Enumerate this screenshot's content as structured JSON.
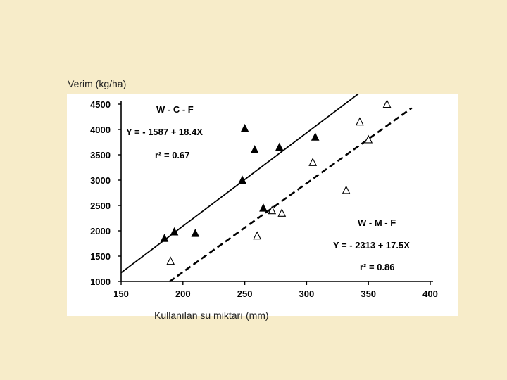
{
  "colors": {
    "background": "#f7ecc9",
    "plot": "#ffffff",
    "ink": "#000000"
  },
  "labels": {
    "ylabel": "Verim (kg/ha)",
    "xlabel": "Kullanılan su miktarı (mm)"
  },
  "chart_data": {
    "type": "scatter",
    "title": "",
    "xlabel": "Kullanılan su miktarı (mm)",
    "ylabel": "Verim (kg/ha)",
    "xlim": [
      150,
      400
    ],
    "ylim": [
      1000,
      4500
    ],
    "xticks": [
      150,
      200,
      250,
      300,
      350,
      400
    ],
    "yticks": [
      1000,
      1500,
      2000,
      2500,
      3000,
      3500,
      4000,
      4500
    ],
    "grid": false,
    "series": [
      {
        "name": "W - C - F",
        "marker": "filled-triangle",
        "line": "solid",
        "equation": "Y = - 1587 + 18.4X",
        "r2": "r² = 0.67",
        "fit": {
          "intercept": -1587,
          "slope": 18.4,
          "x_range": [
            150,
            380
          ]
        },
        "points": [
          [
            185,
            1850
          ],
          [
            193,
            1980
          ],
          [
            210,
            1950
          ],
          [
            250,
            4020
          ],
          [
            258,
            3600
          ],
          [
            278,
            3650
          ],
          [
            248,
            3000
          ],
          [
            265,
            2450
          ],
          [
            307,
            3850
          ]
        ]
      },
      {
        "name": "W - M - F",
        "marker": "open-triangle",
        "line": "dashed",
        "equation": "Y = - 2313 + 17.5X",
        "r2": "r² = 0.86",
        "fit": {
          "intercept": -2313,
          "slope": 17.5,
          "x_range": [
            189,
            385
          ]
        },
        "points": [
          [
            190,
            1400
          ],
          [
            260,
            1900
          ],
          [
            272,
            2400
          ],
          [
            280,
            2350
          ],
          [
            305,
            3350
          ],
          [
            332,
            2800
          ],
          [
            343,
            4150
          ],
          [
            350,
            3800
          ],
          [
            365,
            4500
          ]
        ]
      }
    ]
  }
}
